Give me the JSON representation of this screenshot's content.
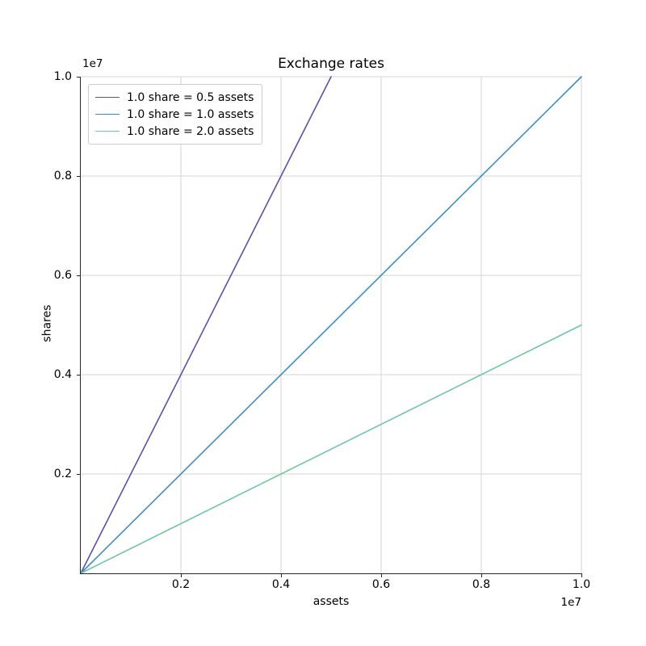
{
  "chart_data": {
    "type": "line",
    "title": "Exchange rates",
    "xlabel": "assets",
    "ylabel": "shares",
    "xlim": [
      0,
      10000000
    ],
    "ylim": [
      0,
      10000000
    ],
    "x_offset_text": "1e7",
    "y_offset_text": "1e7",
    "grid": true,
    "grid_color": "#d5d5d5",
    "legend_position": "upper left",
    "xticks": {
      "values": [
        2000000,
        4000000,
        6000000,
        8000000,
        10000000
      ],
      "labels": [
        "0.2",
        "0.4",
        "0.6",
        "0.8",
        "1.0"
      ]
    },
    "yticks": {
      "values": [
        2000000,
        4000000,
        6000000,
        8000000,
        10000000
      ],
      "labels": [
        "0.2",
        "0.4",
        "0.6",
        "0.8",
        "1.0"
      ]
    },
    "series": [
      {
        "name": "1.0 share = 0.5 assets",
        "color": "#5a52a5",
        "shares_per_asset": 2.0,
        "points": [
          [
            0,
            0
          ],
          [
            5000000,
            10000000
          ]
        ]
      },
      {
        "name": "1.0 share = 1.0 assets",
        "color": "#3e8ec4",
        "shares_per_asset": 1.0,
        "points": [
          [
            0,
            0
          ],
          [
            10000000,
            10000000
          ]
        ]
      },
      {
        "name": "1.0 share = 2.0 assets",
        "color": "#6cc7a0",
        "shares_per_asset": 0.5,
        "points": [
          [
            0,
            0
          ],
          [
            10000000,
            5000000
          ]
        ]
      }
    ]
  }
}
